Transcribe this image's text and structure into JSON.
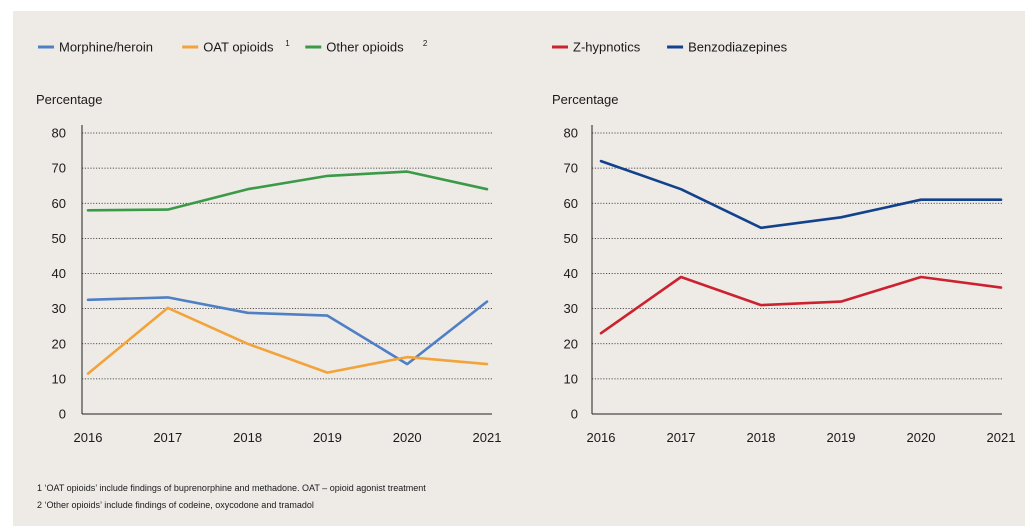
{
  "chart_data": [
    {
      "type": "line",
      "title": "",
      "ylabel": "Percentage",
      "xlabel": "",
      "x": [
        2016,
        2017,
        2018,
        2019,
        2020,
        2021
      ],
      "ylim": [
        0,
        80
      ],
      "yticks": [
        0,
        10,
        20,
        30,
        40,
        50,
        60,
        70,
        80
      ],
      "grid": "horizontal dotted",
      "legend": "top",
      "series": [
        {
          "name": "Morphine/heroin",
          "color": "#4f7fc4",
          "values": [
            32.5,
            33.2,
            28.8,
            28,
            14.2,
            32
          ]
        },
        {
          "name": "OAT opioids",
          "sup": "1",
          "color": "#f2a33a",
          "values": [
            11.5,
            30.2,
            20,
            11.8,
            16.2,
            14.2
          ]
        },
        {
          "name": "Other opioids",
          "sup": "2",
          "color": "#3b9a48",
          "values": [
            58,
            58.2,
            64,
            67.8,
            69,
            64
          ]
        }
      ]
    },
    {
      "type": "line",
      "title": "",
      "ylabel": "Percentage",
      "xlabel": "",
      "x": [
        2016,
        2017,
        2018,
        2019,
        2020,
        2021
      ],
      "ylim": [
        0,
        80
      ],
      "yticks": [
        0,
        10,
        20,
        30,
        40,
        50,
        60,
        70,
        80
      ],
      "grid": "horizontal dotted",
      "legend": "top",
      "series": [
        {
          "name": "Z-hypnotics",
          "color": "#cc2230",
          "values": [
            23,
            39,
            31,
            32,
            39,
            36
          ]
        },
        {
          "name": "Benzodiazepines",
          "color": "#13428c",
          "values": [
            72,
            64,
            53,
            56,
            61,
            61
          ]
        }
      ]
    }
  ],
  "footnotes": [
    "1  ‘OAT opioids’ include findings of buprenorphine and methadone. OAT – opioid agonist treatment",
    "2  ‘Other opioids’ include findings of codeine, oxycodone and tramadol"
  ]
}
